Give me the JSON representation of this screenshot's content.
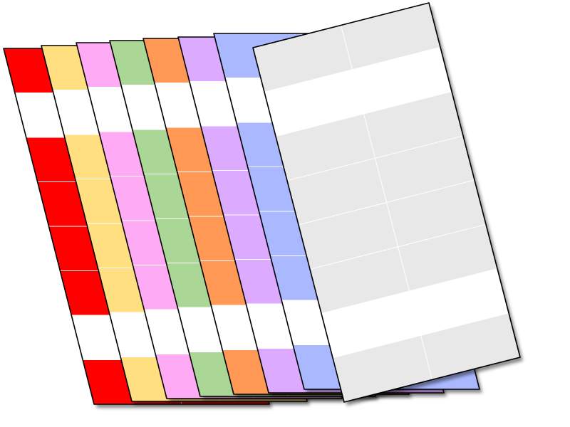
{
  "cards": [
    {
      "name": "card-red",
      "fill": "#ff0000",
      "grid_line": "#ffffff",
      "white_rows": [
        1,
        6
      ]
    },
    {
      "name": "card-yellow",
      "fill": "#ffdf7f",
      "grid_line": "#ffffff",
      "white_rows": [
        1,
        6
      ]
    },
    {
      "name": "card-pink",
      "fill": "#ffaaf5",
      "grid_line": "#ffffff",
      "white_rows": [
        1,
        6
      ]
    },
    {
      "name": "card-green",
      "fill": "#aad795",
      "grid_line": "#ffffff",
      "white_rows": [
        1,
        6
      ]
    },
    {
      "name": "card-orange",
      "fill": "#ff9955",
      "grid_line": "#ffffff",
      "white_rows": [
        1,
        6
      ]
    },
    {
      "name": "card-purple",
      "fill": "#dcaaff",
      "grid_line": "#ffffff",
      "white_rows": [
        1,
        6
      ]
    },
    {
      "name": "card-blue",
      "fill": "#aab9ff",
      "grid_line": "#ffffff",
      "white_rows": [
        1,
        6
      ]
    },
    {
      "name": "card-gray",
      "fill": "#e8e8e8",
      "grid_line": "#ffffff",
      "white_rows": [
        1,
        6
      ]
    }
  ],
  "card_structure": {
    "columns": 2,
    "rows": 8
  },
  "colors": {
    "background": "#ffffff",
    "outline": "#000000",
    "white_band": "#ffffff"
  }
}
